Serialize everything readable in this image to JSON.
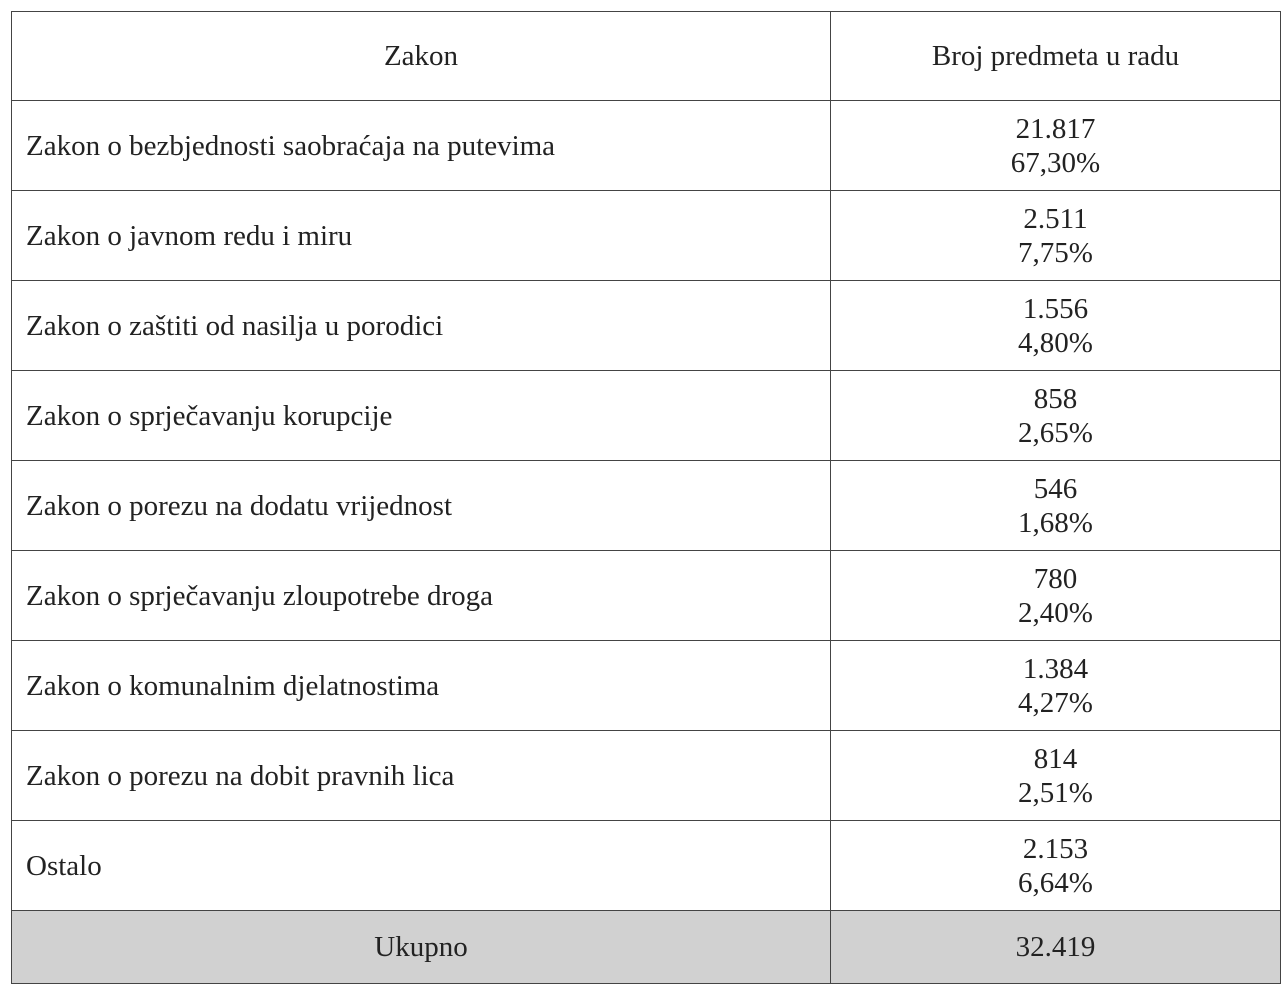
{
  "table": {
    "header": [
      "Zakon",
      "Broj predmeta u radu"
    ],
    "rows": [
      [
        "Zakon o bezbjednosti saobraćaja na putevima",
        "21.817",
        "67,30%"
      ],
      [
        "Zakon o javnom redu i miru",
        "2.511",
        "7,75%"
      ],
      [
        "Zakon o zaštiti od nasilja u porodici",
        "1.556",
        "4,80%"
      ],
      [
        "Zakon o sprječavanju korupcije",
        "858",
        "2,65%"
      ],
      [
        "Zakon o porezu na dodatu vrijednost",
        "546",
        "1,68%"
      ],
      [
        "Zakon o sprječavanju zloupotrebe droga",
        "780",
        "2,40%"
      ],
      [
        "Zakon o komunalnim djelatnostima",
        "1.384",
        "4,27%"
      ],
      [
        "Zakon o porezu na dobit pravnih lica",
        "814",
        "2,51%"
      ],
      [
        "Ostalo",
        "2.153",
        "6,64%"
      ]
    ],
    "total": [
      "Ukupno",
      "32.419"
    ]
  }
}
